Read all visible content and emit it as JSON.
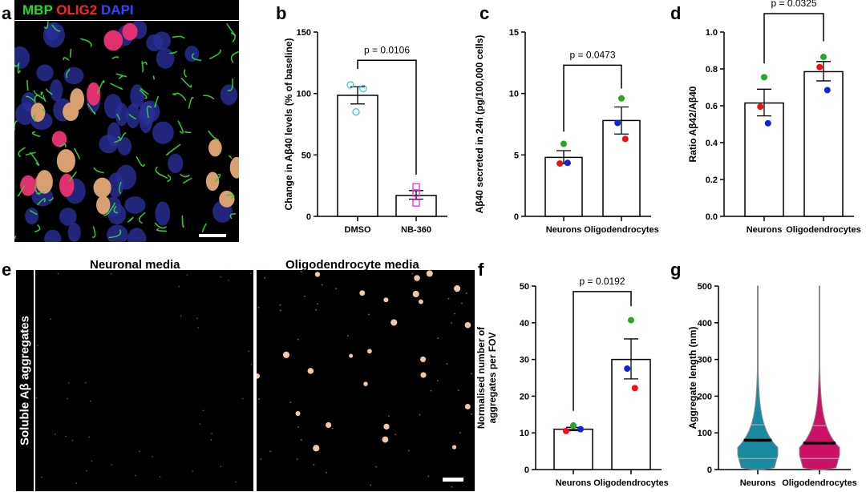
{
  "panel_labels": {
    "a": "a",
    "b": "b",
    "c": "c",
    "d": "d",
    "e": "e",
    "f": "f",
    "g": "g"
  },
  "panel_a": {
    "stain_labels": [
      {
        "text": "MBP",
        "color": "#22dd22"
      },
      {
        "text": "OLIG2",
        "color": "#ff2222"
      },
      {
        "text": "DAPI",
        "color": "#3344ff"
      }
    ]
  },
  "panel_e": {
    "row_label": "Soluble Aβ aggregates",
    "titles": [
      "Neuronal media",
      "Oligodendrocyte media"
    ]
  },
  "chart_data": [
    {
      "id": "b",
      "type": "bar",
      "ylabel": "Change in Aβ40 levels (% of baseline)",
      "ylim": [
        0,
        150
      ],
      "yticks": [
        0,
        50,
        100,
        150
      ],
      "categories": [
        "DMSO",
        "NB-360"
      ],
      "means": [
        98.5,
        17
      ],
      "sem_low": [
        91.5,
        14
      ],
      "sem_high": [
        105.5,
        21
      ],
      "points": [
        [
          {
            "v": 107,
            "c": "#3cc8d8"
          },
          {
            "v": 104,
            "c": "#3cc8d8"
          },
          {
            "v": 85,
            "c": "#3cc8d8"
          }
        ],
        [
          {
            "v": 24,
            "c": "#e030e0"
          },
          {
            "v": 19,
            "c": "#e030e0"
          },
          {
            "v": 11,
            "c": "#e030e0"
          }
        ]
      ],
      "marker": [
        "circle-open",
        "square-open"
      ],
      "p_label": "p = 0.0106"
    },
    {
      "id": "c",
      "type": "bar",
      "ylabel": "Aβ40 secreted in 24h (pg/100,000 cells)",
      "ylim": [
        0,
        15
      ],
      "yticks": [
        0,
        5,
        10,
        15
      ],
      "categories": [
        "Neurons",
        "Oligodendrocytes"
      ],
      "means": [
        4.8,
        7.8
      ],
      "sem_low": [
        4.3,
        6.7
      ],
      "sem_high": [
        5.35,
        8.9
      ],
      "points": [
        [
          {
            "v": 5.9,
            "c": "#22aa22"
          },
          {
            "v": 4.3,
            "c": "#ee1111"
          },
          {
            "v": 4.35,
            "c": "#1122dd"
          }
        ],
        [
          {
            "v": 9.6,
            "c": "#22aa22"
          },
          {
            "v": 7.6,
            "c": "#1122dd"
          },
          {
            "v": 6.3,
            "c": "#ee1111"
          }
        ]
      ],
      "marker": [
        "dot",
        "dot"
      ],
      "p_label": "p = 0.0473"
    },
    {
      "id": "d",
      "type": "bar",
      "ylabel": "Ratio Aβ42/Aβ40",
      "ylim": [
        0,
        1
      ],
      "yticks": [
        "0.0",
        "0.2",
        "0.4",
        "0.6",
        "0.8",
        "1.0"
      ],
      "categories": [
        "Neurons",
        "Oligodendrocytes"
      ],
      "means": [
        0.615,
        0.785
      ],
      "sem_low": [
        0.545,
        0.735
      ],
      "sem_high": [
        0.69,
        0.84
      ],
      "points": [
        [
          {
            "v": 0.755,
            "c": "#22aa22"
          },
          {
            "v": 0.595,
            "c": "#ee1111"
          },
          {
            "v": 0.505,
            "c": "#1122dd"
          }
        ],
        [
          {
            "v": 0.865,
            "c": "#22aa22"
          },
          {
            "v": 0.81,
            "c": "#ee1111"
          },
          {
            "v": 0.685,
            "c": "#1122dd"
          }
        ]
      ],
      "marker": [
        "dot",
        "dot"
      ],
      "p_label": "p = 0.0325"
    },
    {
      "id": "f",
      "type": "bar",
      "ylabel": "Normalised number of aggregates per FOV",
      "ylim": [
        0,
        50
      ],
      "yticks": [
        0,
        10,
        20,
        30,
        40,
        50
      ],
      "categories": [
        "Neurons",
        "Oligodendrocytes"
      ],
      "means": [
        11,
        30
      ],
      "sem_low": [
        10.6,
        24.7
      ],
      "sem_high": [
        11.5,
        35.6
      ],
      "points": [
        [
          {
            "v": 12,
            "c": "#22aa22"
          },
          {
            "v": 10.5,
            "c": "#ee1111"
          },
          {
            "v": 11,
            "c": "#1122dd"
          }
        ],
        [
          {
            "v": 40.7,
            "c": "#22aa22"
          },
          {
            "v": 27.5,
            "c": "#1122dd"
          },
          {
            "v": 22.2,
            "c": "#ee1111"
          }
        ]
      ],
      "marker": [
        "dot",
        "dot"
      ],
      "p_label": "p = 0.0192"
    },
    {
      "id": "g",
      "type": "violin",
      "ylabel": "Aggregate length (nm)",
      "ylim": [
        0,
        500
      ],
      "yticks": [
        0,
        100,
        200,
        300,
        400,
        500
      ],
      "categories": [
        "Neurons",
        "Oligodendrocytes"
      ],
      "colors": [
        "#1a8aa0",
        "#cc1166"
      ],
      "median": [
        80,
        72
      ],
      "q1": [
        30,
        30
      ],
      "q3": [
        122,
        120
      ],
      "max": [
        500,
        500
      ]
    }
  ]
}
